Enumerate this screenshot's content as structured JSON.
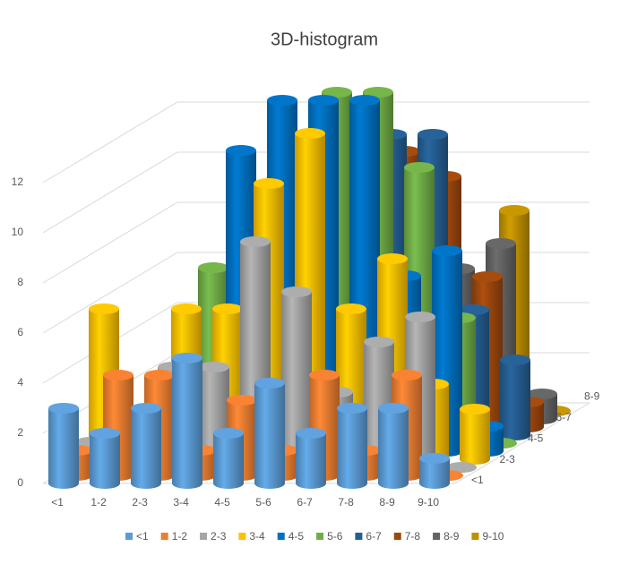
{
  "chart_data": {
    "type": "bar3d",
    "title": "3D-histogram",
    "categories": [
      "<1",
      "1-2",
      "2-3",
      "3-4",
      "4-5",
      "5-6",
      "6-7",
      "7-8",
      "8-9",
      "9-10"
    ],
    "series": [
      {
        "name": "<1",
        "color": "#5b9bd5",
        "values": [
          3,
          2,
          3,
          5,
          2,
          4,
          2,
          3,
          3,
          1
        ]
      },
      {
        "name": "1-2",
        "color": "#ed7d31",
        "values": [
          1,
          4,
          4,
          1,
          3,
          1,
          4,
          1,
          4,
          0
        ]
      },
      {
        "name": "2-3",
        "color": "#a5a5a5",
        "values": [
          1,
          1,
          4,
          4,
          9,
          7,
          3,
          5,
          6,
          0
        ]
      },
      {
        "name": "3-4",
        "color": "#ffc000",
        "values": [
          6,
          1,
          6,
          6,
          11,
          13,
          6,
          8,
          3,
          2
        ]
      },
      {
        "name": "4-5",
        "color": "#0070c0",
        "values": [
          0,
          1,
          3,
          12,
          14,
          14,
          14,
          7,
          8,
          1
        ]
      },
      {
        "name": "5-6",
        "color": "#70ad47",
        "values": [
          0,
          1,
          7,
          8,
          10,
          14,
          14,
          11,
          5,
          0
        ]
      },
      {
        "name": "6-7",
        "color": "#255e91",
        "values": [
          0,
          1,
          3,
          9,
          10,
          12,
          12,
          12,
          5,
          3
        ]
      },
      {
        "name": "7-8",
        "color": "#9e480e",
        "values": [
          0,
          1,
          5,
          7,
          9,
          10,
          11,
          10,
          6,
          1
        ]
      },
      {
        "name": "8-9",
        "color": "#636363",
        "values": [
          0,
          0,
          1,
          3,
          4,
          6,
          6,
          6,
          7,
          1
        ]
      },
      {
        "name": "9-10",
        "color": "#bf9000",
        "values": [
          0,
          0,
          0,
          1,
          2,
          3,
          4,
          4,
          8,
          0
        ]
      }
    ],
    "ylim": [
      0,
      14
    ],
    "yticks": [
      0,
      2,
      4,
      6,
      8,
      10,
      12
    ],
    "grid": true
  }
}
